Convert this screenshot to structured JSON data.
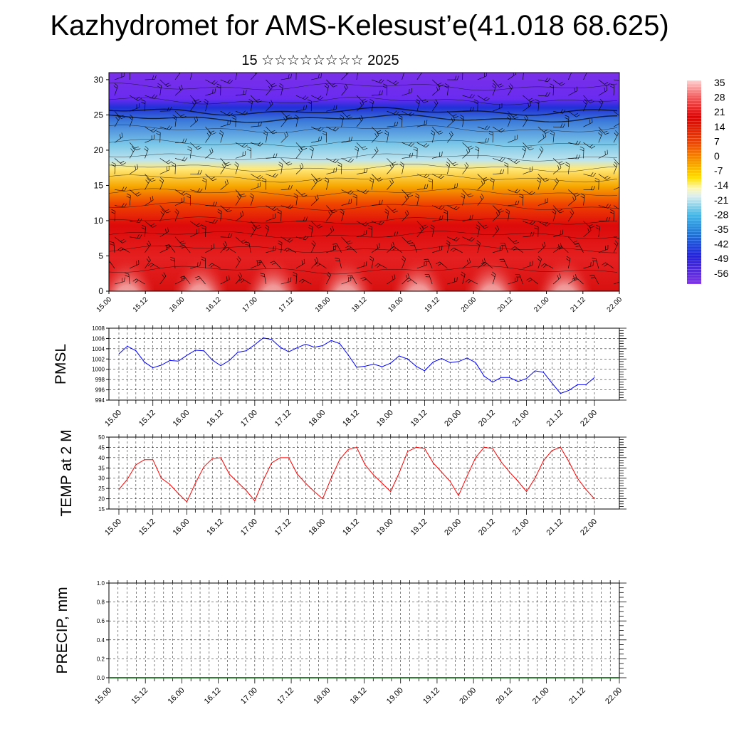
{
  "title": "Kazhydromet for AMS-Kelesust’e(41.018 68.625)",
  "subtitle": "15 ☆☆☆☆☆☆☆☆ 2025",
  "colors": {
    "pmsl_line": "#0000ff",
    "temp_line": "#ff0000",
    "precip_line": "#2e7d32"
  },
  "chart_data": [
    {
      "type": "heatmap",
      "name": "upper-air-temperature-wind",
      "title": "",
      "ylabel": "",
      "x_ticks": [
        "15.00",
        "15.12",
        "16.00",
        "16.12",
        "17.00",
        "17.12",
        "18.00",
        "18.12",
        "19.00",
        "19.12",
        "20.00",
        "20.12",
        "21.00",
        "21.12",
        "22.00"
      ],
      "y_ticks": [
        0,
        5,
        10,
        15,
        20,
        25,
        30
      ],
      "ylim": [
        0,
        31
      ],
      "colorbar_labels": [
        "35",
        "28",
        "21",
        "14",
        "7",
        "0",
        "-7",
        "-14",
        "-21",
        "-28",
        "-35",
        "-42",
        "-49",
        "-56"
      ],
      "wind_barbs": true
    },
    {
      "type": "line",
      "name": "pmsl",
      "ylabel": "PMSL",
      "ylim": [
        994,
        1008
      ],
      "y_ticks": [
        "994",
        "996",
        "998",
        "1000",
        "1002",
        "1004",
        "1006",
        "1008"
      ],
      "x_ticks": [
        "15.00",
        "15.12",
        "16.00",
        "16.12",
        "17.00",
        "17.12",
        "18.00",
        "18.12",
        "19.00",
        "19.12",
        "20.00",
        "20.12",
        "21.00",
        "21.12",
        "22.00"
      ],
      "values": [
        1003.0,
        1004.5,
        1003.6,
        1001.4,
        1000.3,
        1000.8,
        1001.7,
        1001.6,
        1002.7,
        1003.7,
        1003.6,
        1001.8,
        1000.7,
        1001.7,
        1003.3,
        1003.6,
        1004.8,
        1006.1,
        1005.8,
        1004.3,
        1003.4,
        1004.2,
        1004.9,
        1004.3,
        1004.6,
        1005.6,
        1005.0,
        1002.8,
        1000.4,
        1000.6,
        1001.0,
        1000.5,
        1001.2,
        1002.6,
        1002.0,
        1000.6,
        999.7,
        1001.4,
        1002.1,
        1001.3,
        1001.5,
        1002.2,
        1001.3,
        998.7,
        997.5,
        998.4,
        998.4,
        997.6,
        998.2,
        999.7,
        999.4,
        997.3,
        995.3,
        995.9,
        997.0,
        997.0,
        998.4
      ]
    },
    {
      "type": "line",
      "name": "temp-2m",
      "ylabel": "TEMP at 2 M",
      "ylim": [
        15,
        50
      ],
      "y_ticks": [
        "15",
        "20",
        "25",
        "30",
        "35",
        "40",
        "45",
        "50"
      ],
      "x_ticks": [
        "15.00",
        "15.12",
        "16.00",
        "16.12",
        "17.00",
        "17.12",
        "18.00",
        "18.12",
        "19.00",
        "19.12",
        "20.00",
        "20.12",
        "21.00",
        "21.12",
        "22.00"
      ],
      "values": [
        24.5,
        29.5,
        36.5,
        39.0,
        39.0,
        30.0,
        27.0,
        22.5,
        18.5,
        27.5,
        35.5,
        39.5,
        40.0,
        32.0,
        28.0,
        24.0,
        19.0,
        29.0,
        37.5,
        40.0,
        40.0,
        32.0,
        27.5,
        23.5,
        20.0,
        30.0,
        39.0,
        44.0,
        45.0,
        36.5,
        31.5,
        27.5,
        23.5,
        32.5,
        43.0,
        45.0,
        44.5,
        37.5,
        33.0,
        28.5,
        21.5,
        31.0,
        40.0,
        45.0,
        44.5,
        38.0,
        33.0,
        28.5,
        23.5,
        30.0,
        38.5,
        43.5,
        45.0,
        38.0,
        30.0,
        24.5,
        20.0
      ]
    },
    {
      "type": "line",
      "name": "precip",
      "ylabel": "PRECIP, mm",
      "ylim": [
        0,
        1
      ],
      "y_ticks": [
        "0.0",
        "0.2",
        "0.4",
        "0.6",
        "0.8",
        "1.0"
      ],
      "x_ticks": [
        "15.00",
        "15.12",
        "16.00",
        "16.12",
        "17.00",
        "17.12",
        "18.00",
        "18.12",
        "19.00",
        "19.12",
        "20.00",
        "20.12",
        "21.00",
        "21.12",
        "22.00"
      ],
      "values": [
        0,
        0,
        0,
        0,
        0,
        0,
        0,
        0,
        0,
        0,
        0,
        0,
        0,
        0,
        0,
        0,
        0,
        0,
        0,
        0,
        0,
        0,
        0,
        0,
        0,
        0,
        0,
        0,
        0,
        0,
        0,
        0,
        0,
        0,
        0,
        0,
        0,
        0,
        0,
        0,
        0,
        0,
        0,
        0,
        0,
        0,
        0,
        0,
        0,
        0,
        0,
        0,
        0,
        0,
        0,
        0,
        0
      ]
    }
  ]
}
